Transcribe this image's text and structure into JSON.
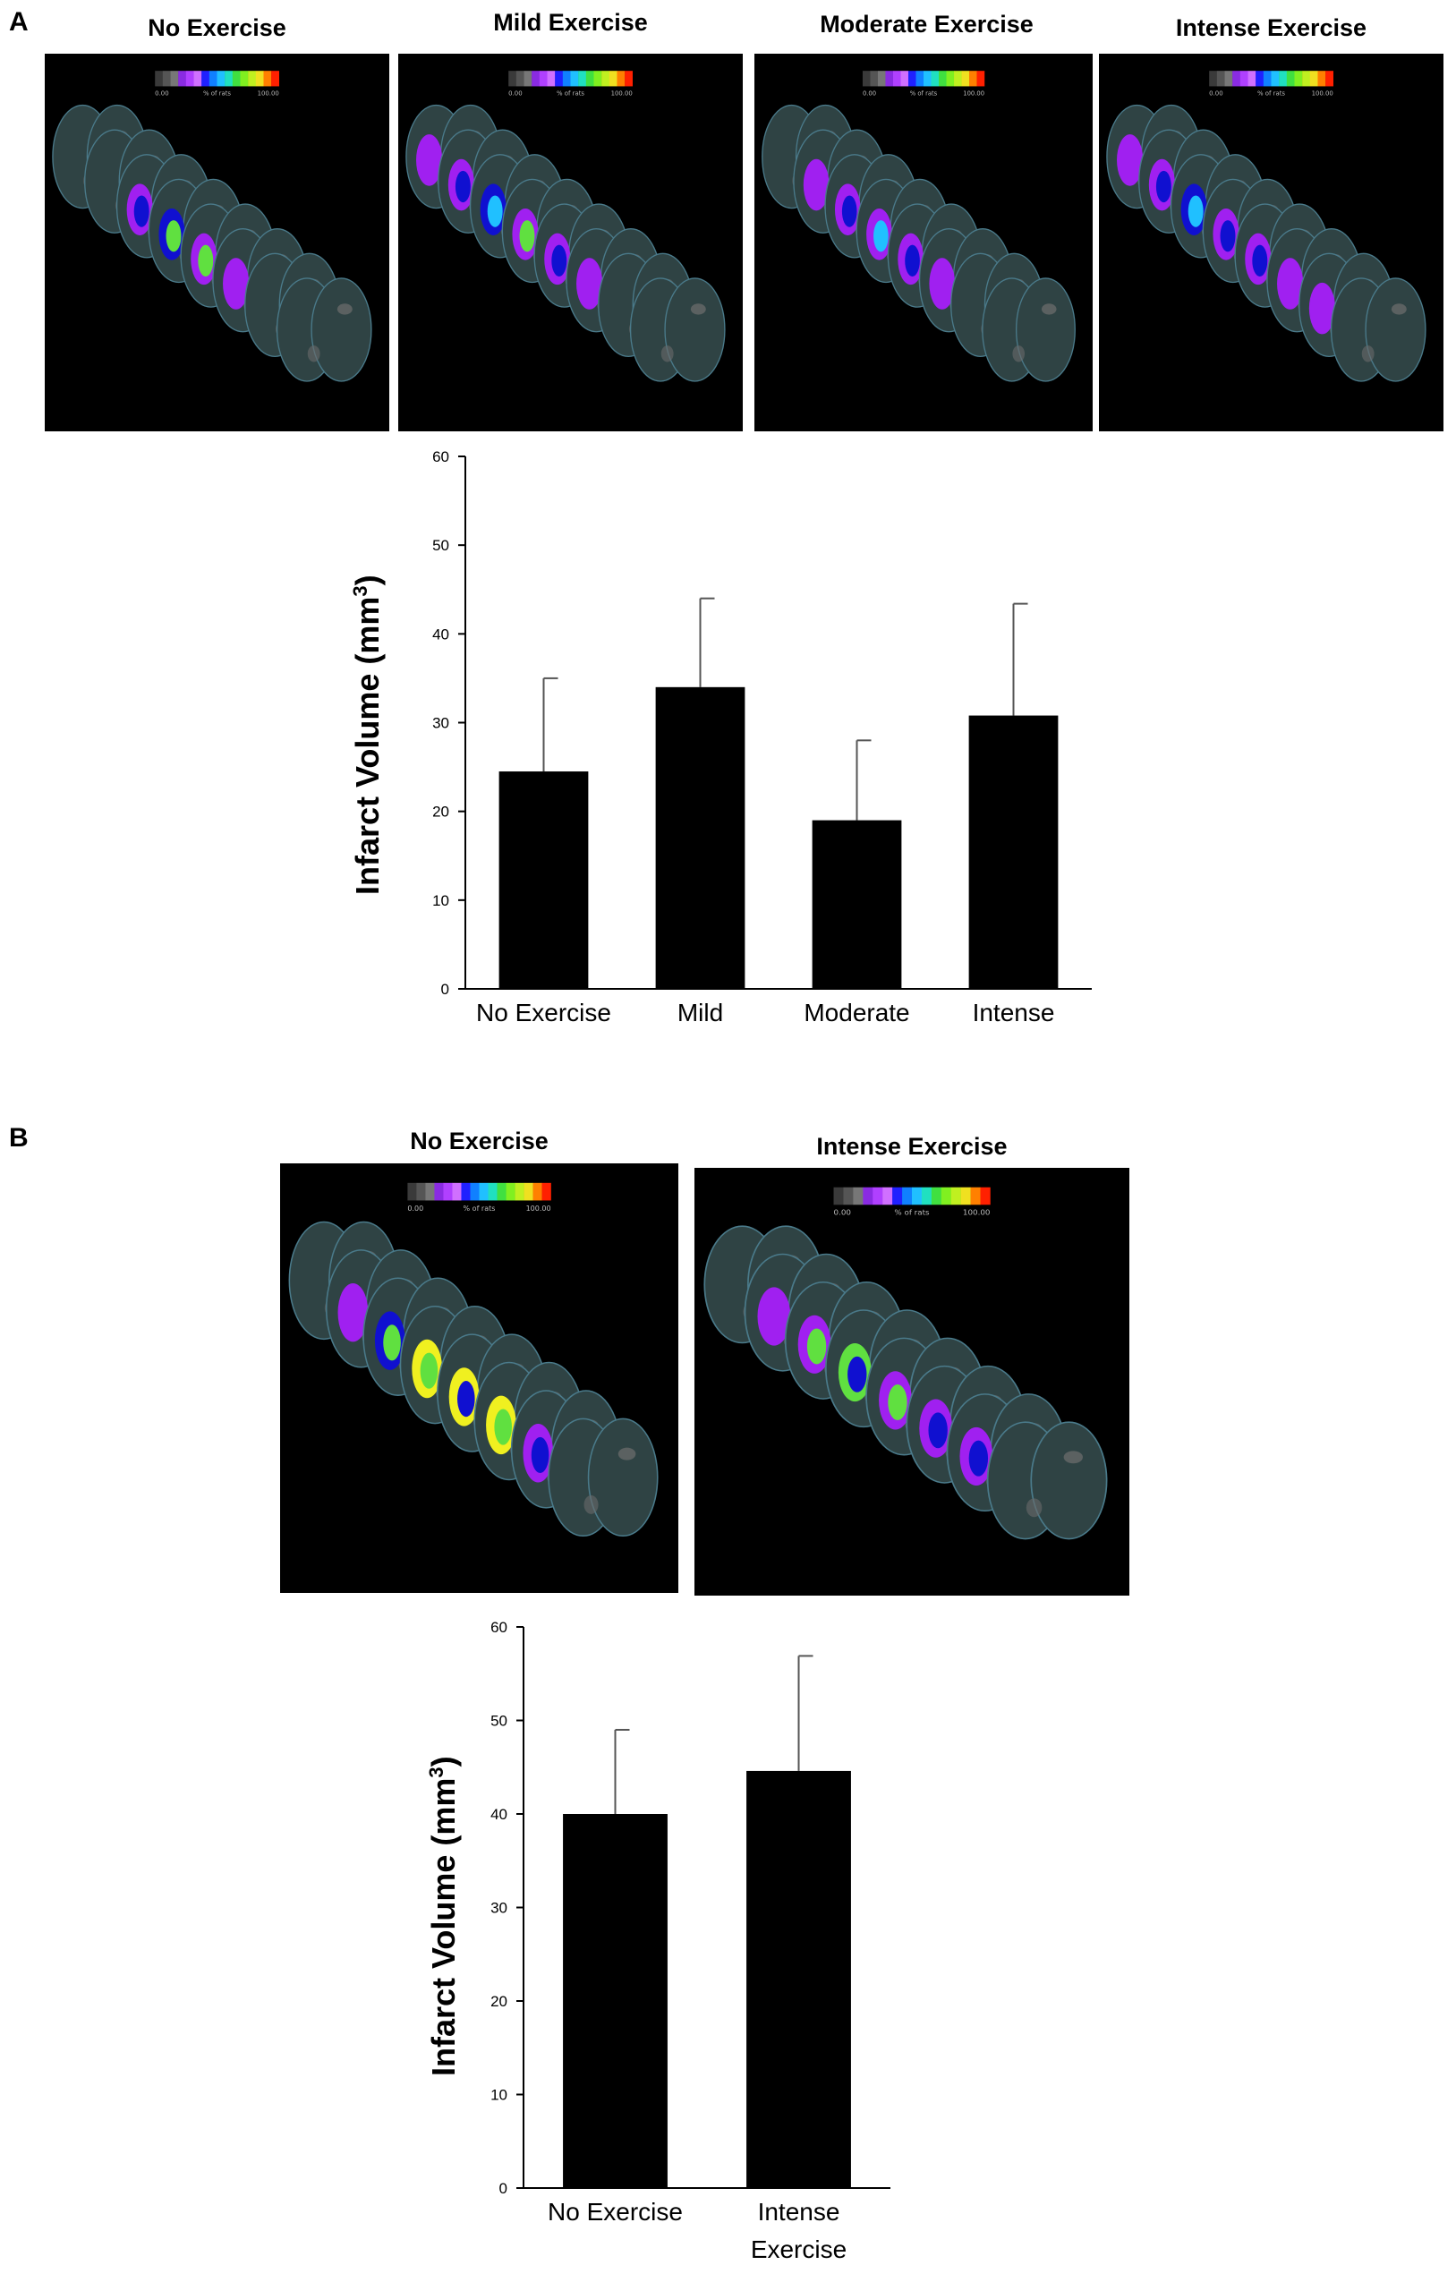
{
  "panel_a": {
    "letter": "A",
    "images": [
      {
        "title": "No Exercise",
        "variant": "a0"
      },
      {
        "title": "Mild Exercise",
        "variant": "a1"
      },
      {
        "title": "Moderate Exercise",
        "variant": "a2"
      },
      {
        "title": "Intense Exercise",
        "variant": "a3"
      }
    ]
  },
  "panel_b": {
    "letter": "B",
    "images": [
      {
        "title": "No Exercise",
        "variant": "b0"
      },
      {
        "title": "Intense Exercise",
        "variant": "b1"
      }
    ]
  },
  "colorbar": {
    "min_label": "0.00",
    "mid_label": "% of rats",
    "max_label": "100.00"
  },
  "colors": {
    "bar": "#000000",
    "brain": "#2f4344",
    "gray_spot": "#6b6b6b",
    "purple": "#a020f0",
    "magenta": "#c040ff",
    "blue": "#1010d0",
    "cyan": "#20c0ff",
    "green": "#60e040",
    "yellow": "#f0f020",
    "red": "#ff2000"
  },
  "chart_data": [
    {
      "type": "bar",
      "categories": [
        "No Exercise",
        "Mild",
        "Moderate",
        "Intense"
      ],
      "values": [
        24.5,
        34,
        19,
        30.8
      ],
      "errors": [
        10.5,
        10,
        9,
        12.6
      ],
      "ylabel": "Infarct Volume (mm3)",
      "ylabel_main": "Infarct Volume (mm",
      "ylabel_sup": "3",
      "ylabel_end": ")",
      "ylim": [
        0,
        60
      ],
      "yticks": [
        0,
        10,
        20,
        30,
        40,
        50,
        60
      ],
      "grid": false
    },
    {
      "type": "bar",
      "categories": [
        "No Exercise",
        "Intense\nExercise"
      ],
      "values": [
        40,
        44.6
      ],
      "errors": [
        9,
        12.3
      ],
      "ylabel": "Infarct Volume (mm3)",
      "ylabel_main": "Infarct Volume (mm",
      "ylabel_sup": "3",
      "ylabel_end": ")",
      "ylim": [
        0,
        60
      ],
      "yticks": [
        0,
        10,
        20,
        30,
        40,
        50,
        60
      ],
      "grid": false
    }
  ]
}
